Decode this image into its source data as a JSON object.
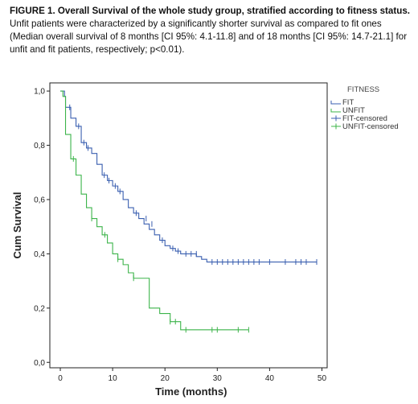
{
  "caption": {
    "title": "FIGURE 1. Overall Survival of the whole study group, stratified according to fitness status.",
    "text": "Unfit patients were characterized by a significantly shorter survival as compared to fit ones (Median overall survival of 8 months [CI 95%: 4.1-11.8] and of 18 months [CI 95%: 14.7-21.1] for unfit and fit patients, respectively; p<0.01)."
  },
  "chart_data": {
    "type": "line",
    "subtype": "kaplan-meier step",
    "xlabel": "Time (months)",
    "ylabel": "Cum Survival",
    "xlim": [
      -2,
      51
    ],
    "ylim": [
      -0.02,
      1.03
    ],
    "x_ticks": [
      0,
      10,
      20,
      30,
      40,
      50
    ],
    "x_tick_labels": [
      "0",
      "10",
      "20",
      "30",
      "40",
      "50"
    ],
    "y_ticks": [
      0,
      0.2,
      0.4,
      0.6,
      0.8,
      1.0
    ],
    "y_tick_labels": [
      "0,0",
      "0,2",
      "0,4",
      "0,6",
      "0,8",
      "1,0"
    ],
    "grid": false,
    "legend": {
      "title": "FITNESS",
      "position": "right",
      "entries": [
        "FIT",
        "UNFIT",
        "FIT-censored",
        "UNFIT-censored"
      ]
    },
    "colors": {
      "FIT": "#3a5fb0",
      "UNFIT": "#3cb44a"
    },
    "series": [
      {
        "name": "FIT",
        "color": "#3a5fb0",
        "steps": [
          [
            0,
            1.0
          ],
          [
            0.8,
            0.98
          ],
          [
            1,
            0.94
          ],
          [
            2,
            0.9
          ],
          [
            3,
            0.87
          ],
          [
            4,
            0.81
          ],
          [
            5,
            0.79
          ],
          [
            6,
            0.77
          ],
          [
            7,
            0.73
          ],
          [
            8,
            0.69
          ],
          [
            9,
            0.67
          ],
          [
            10,
            0.65
          ],
          [
            11,
            0.63
          ],
          [
            12,
            0.6
          ],
          [
            13,
            0.57
          ],
          [
            14,
            0.55
          ],
          [
            15,
            0.53
          ],
          [
            16,
            0.51
          ],
          [
            17,
            0.49
          ],
          [
            18,
            0.47
          ],
          [
            19,
            0.45
          ],
          [
            20,
            0.43
          ],
          [
            21,
            0.42
          ],
          [
            22,
            0.41
          ],
          [
            23,
            0.4
          ],
          [
            26,
            0.39
          ],
          [
            27,
            0.38
          ],
          [
            28,
            0.37
          ],
          [
            49,
            0.37
          ]
        ],
        "censored": [
          [
            1.8,
            0.94
          ],
          [
            3.5,
            0.87
          ],
          [
            4.5,
            0.81
          ],
          [
            5.3,
            0.79
          ],
          [
            8.4,
            0.69
          ],
          [
            9.3,
            0.67
          ],
          [
            10.5,
            0.65
          ],
          [
            11.4,
            0.63
          ],
          [
            14.5,
            0.55
          ],
          [
            16.4,
            0.53
          ],
          [
            17.5,
            0.51
          ],
          [
            19.5,
            0.45
          ],
          [
            21.5,
            0.42
          ],
          [
            22.5,
            0.41
          ],
          [
            24.0,
            0.4
          ],
          [
            25.0,
            0.4
          ],
          [
            26.0,
            0.4
          ],
          [
            29.0,
            0.37
          ],
          [
            30.0,
            0.37
          ],
          [
            31.0,
            0.37
          ],
          [
            32.0,
            0.37
          ],
          [
            33.0,
            0.37
          ],
          [
            34.0,
            0.37
          ],
          [
            35.0,
            0.37
          ],
          [
            36.0,
            0.37
          ],
          [
            37.0,
            0.37
          ],
          [
            38.0,
            0.37
          ],
          [
            40.0,
            0.37
          ],
          [
            43.0,
            0.37
          ],
          [
            45.0,
            0.37
          ],
          [
            46.0,
            0.37
          ],
          [
            47.0,
            0.37
          ],
          [
            49.0,
            0.37
          ]
        ]
      },
      {
        "name": "UNFIT",
        "color": "#3cb44a",
        "steps": [
          [
            0,
            1.0
          ],
          [
            0.5,
            0.98
          ],
          [
            1,
            0.84
          ],
          [
            2,
            0.75
          ],
          [
            3,
            0.69
          ],
          [
            4,
            0.62
          ],
          [
            5,
            0.57
          ],
          [
            6,
            0.53
          ],
          [
            7,
            0.5
          ],
          [
            8,
            0.47
          ],
          [
            9,
            0.44
          ],
          [
            10,
            0.4
          ],
          [
            11,
            0.38
          ],
          [
            12,
            0.36
          ],
          [
            13,
            0.33
          ],
          [
            14,
            0.31
          ],
          [
            17,
            0.2
          ],
          [
            19,
            0.18
          ],
          [
            21,
            0.15
          ],
          [
            23,
            0.12
          ],
          [
            36,
            0.12
          ]
        ],
        "censored": [
          [
            2.5,
            0.75
          ],
          [
            6.0,
            0.53
          ],
          [
            8.5,
            0.47
          ],
          [
            11.0,
            0.38
          ],
          [
            14.0,
            0.31
          ],
          [
            21.0,
            0.15
          ],
          [
            22.0,
            0.15
          ],
          [
            24.0,
            0.12
          ],
          [
            29.0,
            0.12
          ],
          [
            30.0,
            0.12
          ],
          [
            34.0,
            0.12
          ],
          [
            36.0,
            0.12
          ]
        ]
      }
    ]
  }
}
